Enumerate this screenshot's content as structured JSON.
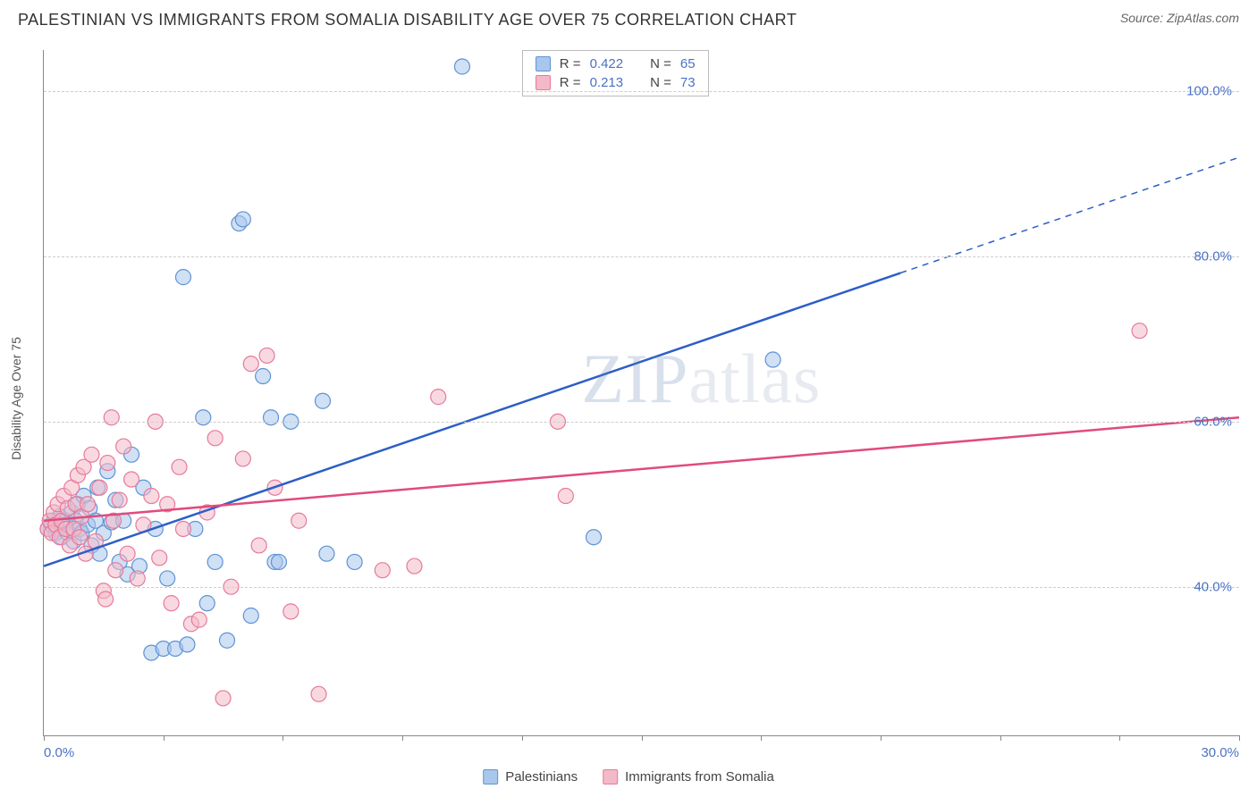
{
  "title": "PALESTINIAN VS IMMIGRANTS FROM SOMALIA DISABILITY AGE OVER 75 CORRELATION CHART",
  "source": "Source: ZipAtlas.com",
  "watermark": "ZIPatlas",
  "chart": {
    "type": "scatter",
    "x_axis_title": "",
    "y_axis_title": "Disability Age Over 75",
    "xlim": [
      0,
      30
    ],
    "ylim": [
      22,
      105
    ],
    "x_ticks": [
      0,
      3,
      6,
      9,
      12,
      15,
      18,
      21,
      24,
      27,
      30
    ],
    "x_tick_labels": {
      "0": "0.0%",
      "30": "30.0%"
    },
    "y_gridlines": [
      40,
      60,
      80,
      100
    ],
    "y_tick_labels": [
      "40.0%",
      "60.0%",
      "80.0%",
      "100.0%"
    ],
    "background_color": "#ffffff",
    "grid_color": "#cccccc",
    "axis_color": "#888888",
    "tick_label_color": "#4a72c4",
    "marker_radius": 8.5,
    "marker_opacity": 0.55,
    "line_width": 2.5,
    "series": [
      {
        "name": "Palestinians",
        "fill": "#a9c7ec",
        "stroke": "#5f93d4",
        "line_color": "#2d5ec7",
        "R": "0.422",
        "N": "65",
        "regression": {
          "x1": 0,
          "y1": 42.5,
          "x2": 21.5,
          "y2": 78,
          "x2_ext": 30,
          "y2_ext": 92
        },
        "points": [
          [
            0.1,
            47
          ],
          [
            0.2,
            47.5
          ],
          [
            0.25,
            48
          ],
          [
            0.3,
            46.5
          ],
          [
            0.35,
            47
          ],
          [
            0.4,
            48.5
          ],
          [
            0.45,
            46
          ],
          [
            0.5,
            47.5
          ],
          [
            0.55,
            48
          ],
          [
            0.6,
            46.5
          ],
          [
            0.7,
            49
          ],
          [
            0.75,
            45.5
          ],
          [
            0.8,
            48
          ],
          [
            0.85,
            50
          ],
          [
            0.9,
            47
          ],
          [
            0.95,
            46.5
          ],
          [
            1.0,
            51
          ],
          [
            1.1,
            47.5
          ],
          [
            1.15,
            49.5
          ],
          [
            1.2,
            45
          ],
          [
            1.3,
            48
          ],
          [
            1.35,
            52
          ],
          [
            1.4,
            44
          ],
          [
            1.5,
            46.5
          ],
          [
            1.6,
            54
          ],
          [
            1.7,
            47.8
          ],
          [
            1.8,
            50.5
          ],
          [
            1.9,
            43
          ],
          [
            2.0,
            48
          ],
          [
            2.1,
            41.5
          ],
          [
            2.2,
            56
          ],
          [
            2.4,
            42.5
          ],
          [
            2.5,
            52
          ],
          [
            2.7,
            32
          ],
          [
            2.8,
            47
          ],
          [
            3.0,
            32.5
          ],
          [
            3.1,
            41
          ],
          [
            3.3,
            32.5
          ],
          [
            3.5,
            77.5
          ],
          [
            3.6,
            33
          ],
          [
            3.8,
            47
          ],
          [
            4.0,
            60.5
          ],
          [
            4.1,
            38
          ],
          [
            4.3,
            43
          ],
          [
            4.6,
            33.5
          ],
          [
            4.9,
            84
          ],
          [
            5.0,
            84.5
          ],
          [
            5.2,
            36.5
          ],
          [
            5.5,
            65.5
          ],
          [
            5.7,
            60.5
          ],
          [
            5.8,
            43
          ],
          [
            5.9,
            43
          ],
          [
            6.2,
            60
          ],
          [
            7.0,
            62.5
          ],
          [
            7.1,
            44
          ],
          [
            7.8,
            43
          ],
          [
            10.5,
            103
          ],
          [
            13.8,
            46
          ],
          [
            18.3,
            67.5
          ]
        ]
      },
      {
        "name": "Immigrants from Somalia",
        "fill": "#f3b9c9",
        "stroke": "#e77a9a",
        "line_color": "#e14b7c",
        "R": "0.213",
        "N": "73",
        "regression": {
          "x1": 0,
          "y1": 48,
          "x2": 30,
          "y2": 60.5,
          "x2_ext": 30,
          "y2_ext": 60.5
        },
        "points": [
          [
            0.1,
            47
          ],
          [
            0.15,
            48
          ],
          [
            0.2,
            46.5
          ],
          [
            0.25,
            49
          ],
          [
            0.3,
            47.5
          ],
          [
            0.35,
            50
          ],
          [
            0.4,
            46
          ],
          [
            0.45,
            48
          ],
          [
            0.5,
            51
          ],
          [
            0.55,
            47
          ],
          [
            0.6,
            49.5
          ],
          [
            0.65,
            45
          ],
          [
            0.7,
            52
          ],
          [
            0.75,
            47
          ],
          [
            0.8,
            50
          ],
          [
            0.85,
            53.5
          ],
          [
            0.9,
            46
          ],
          [
            0.95,
            48.5
          ],
          [
            1.0,
            54.5
          ],
          [
            1.05,
            44
          ],
          [
            1.1,
            50
          ],
          [
            1.2,
            56
          ],
          [
            1.3,
            45.5
          ],
          [
            1.4,
            52
          ],
          [
            1.5,
            39.5
          ],
          [
            1.55,
            38.5
          ],
          [
            1.6,
            55
          ],
          [
            1.7,
            60.5
          ],
          [
            1.75,
            48
          ],
          [
            1.8,
            42
          ],
          [
            1.9,
            50.5
          ],
          [
            2.0,
            57
          ],
          [
            2.1,
            44
          ],
          [
            2.2,
            53
          ],
          [
            2.35,
            41
          ],
          [
            2.5,
            47.5
          ],
          [
            2.7,
            51
          ],
          [
            2.8,
            60
          ],
          [
            2.9,
            43.5
          ],
          [
            3.1,
            50
          ],
          [
            3.2,
            38
          ],
          [
            3.4,
            54.5
          ],
          [
            3.5,
            47
          ],
          [
            3.7,
            35.5
          ],
          [
            3.9,
            36
          ],
          [
            4.1,
            49
          ],
          [
            4.3,
            58
          ],
          [
            4.5,
            26.5
          ],
          [
            4.7,
            40
          ],
          [
            5.0,
            55.5
          ],
          [
            5.2,
            67
          ],
          [
            5.4,
            45
          ],
          [
            5.6,
            68
          ],
          [
            5.8,
            52
          ],
          [
            6.2,
            37
          ],
          [
            6.4,
            48
          ],
          [
            6.9,
            27
          ],
          [
            8.5,
            42
          ],
          [
            9.3,
            42.5
          ],
          [
            9.9,
            63
          ],
          [
            12.9,
            60
          ],
          [
            13.1,
            51
          ],
          [
            27.5,
            71
          ]
        ]
      }
    ]
  },
  "legend": {
    "stats_rows": [
      {
        "swatch_fill": "#a9c7ec",
        "swatch_stroke": "#5f93d4",
        "R_label": "R =",
        "R_val": "0.422",
        "N_label": "N =",
        "N_val": "65"
      },
      {
        "swatch_fill": "#f3b9c9",
        "swatch_stroke": "#e77a9a",
        "R_label": "R =",
        "R_val": "0.213",
        "N_label": "N =",
        "N_val": "73"
      }
    ],
    "bottom": [
      {
        "swatch_fill": "#a9c7ec",
        "swatch_stroke": "#5f93d4",
        "label": "Palestinians"
      },
      {
        "swatch_fill": "#f3b9c9",
        "swatch_stroke": "#e77a9a",
        "label": "Immigrants from Somalia"
      }
    ]
  }
}
